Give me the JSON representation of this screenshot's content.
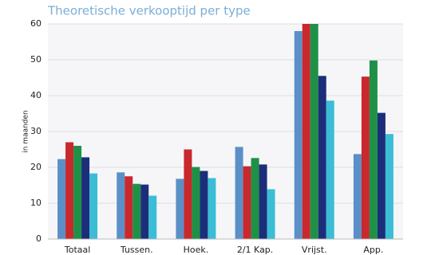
{
  "chart_data": {
    "type": "bar",
    "title": "Theoretische verkooptijd per type",
    "y_label": "in maanden",
    "categories": [
      "Totaal",
      "Tussen.",
      "Hoek.",
      "2/1 Kap.",
      "Vrijst.",
      "App."
    ],
    "series": [
      {
        "color": "#5b8fc7",
        "values": [
          22.3,
          18.6,
          16.8,
          25.7,
          58,
          23.7
        ]
      },
      {
        "color": "#c9282d",
        "values": [
          27,
          17.5,
          25,
          20.3,
          60,
          45.3
        ]
      },
      {
        "color": "#1e9147",
        "values": [
          26,
          15.4,
          20.1,
          22.6,
          60,
          49.8
        ]
      },
      {
        "color": "#1c2e7a",
        "values": [
          22.8,
          15.2,
          19,
          20.8,
          45.5,
          35.2
        ]
      },
      {
        "color": "#3bbdd6",
        "values": [
          18.3,
          12.1,
          17,
          13.9,
          38.6,
          29.3
        ]
      }
    ],
    "ylim": [
      0,
      60
    ],
    "yticks": [
      0,
      10,
      20,
      30,
      40,
      50,
      60
    ],
    "grid": true
  }
}
